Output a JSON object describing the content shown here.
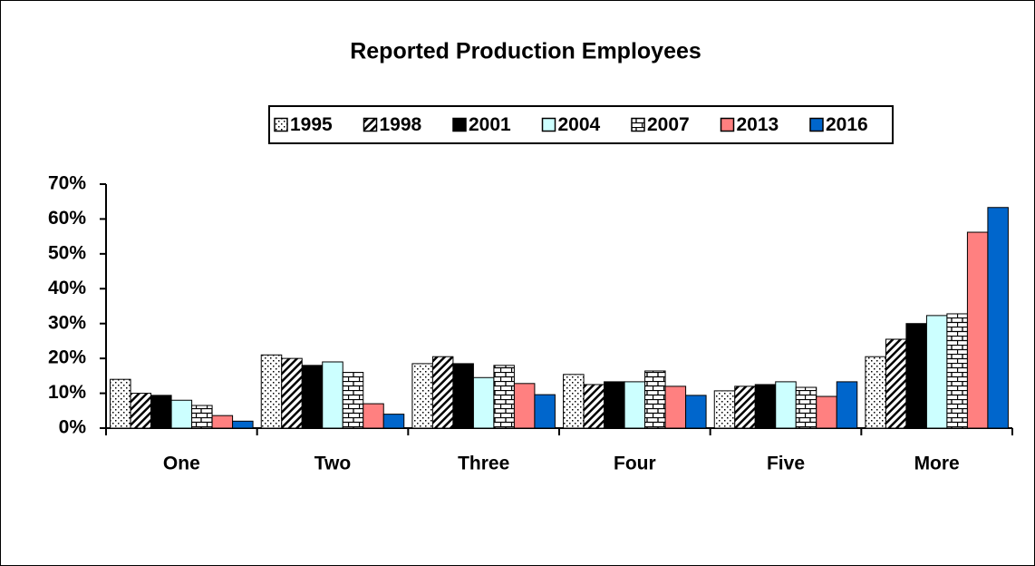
{
  "chart_data": {
    "type": "bar",
    "title": "Reported Production Employees",
    "categories": [
      "One",
      "Two",
      "Three",
      "Four",
      "Five",
      "More"
    ],
    "series": [
      {
        "name": "1995",
        "color": "#ffffff",
        "pattern": "dots",
        "values": [
          14,
          21,
          18.5,
          15.4,
          10.7,
          20.5
        ]
      },
      {
        "name": "1998",
        "color": "#ffffff",
        "pattern": "hatch",
        "values": [
          10,
          20,
          20.5,
          12.5,
          12,
          25.5
        ]
      },
      {
        "name": "2001",
        "color": "#000000",
        "values": [
          9.4,
          18,
          18.5,
          13.3,
          12.5,
          30
        ]
      },
      {
        "name": "2004",
        "color": "#ccffff",
        "values": [
          8,
          19,
          14.5,
          13.3,
          13.3,
          32.3
        ]
      },
      {
        "name": "2007",
        "color": "#ffffff",
        "pattern": "brick",
        "values": [
          6.5,
          16,
          18,
          16.4,
          11.7,
          32.8
        ]
      },
      {
        "name": "2013",
        "color": "#ff8080",
        "values": [
          3.6,
          7,
          12.8,
          12,
          9.1,
          56.2
        ]
      },
      {
        "name": "2016",
        "color": "#0066cc",
        "values": [
          2,
          4,
          9.6,
          9.4,
          13.3,
          63.3
        ]
      }
    ],
    "ylim": [
      0,
      70
    ],
    "yticks": [
      {
        "value": 0,
        "label": "0%"
      },
      {
        "value": 10,
        "label": "10%"
      },
      {
        "value": 20,
        "label": "20%"
      },
      {
        "value": 30,
        "label": "30%"
      },
      {
        "value": 40,
        "label": "40%"
      },
      {
        "value": 50,
        "label": "50%"
      },
      {
        "value": 60,
        "label": "60%"
      },
      {
        "value": 70,
        "label": "70%"
      }
    ],
    "grid": false,
    "legend": "top"
  }
}
